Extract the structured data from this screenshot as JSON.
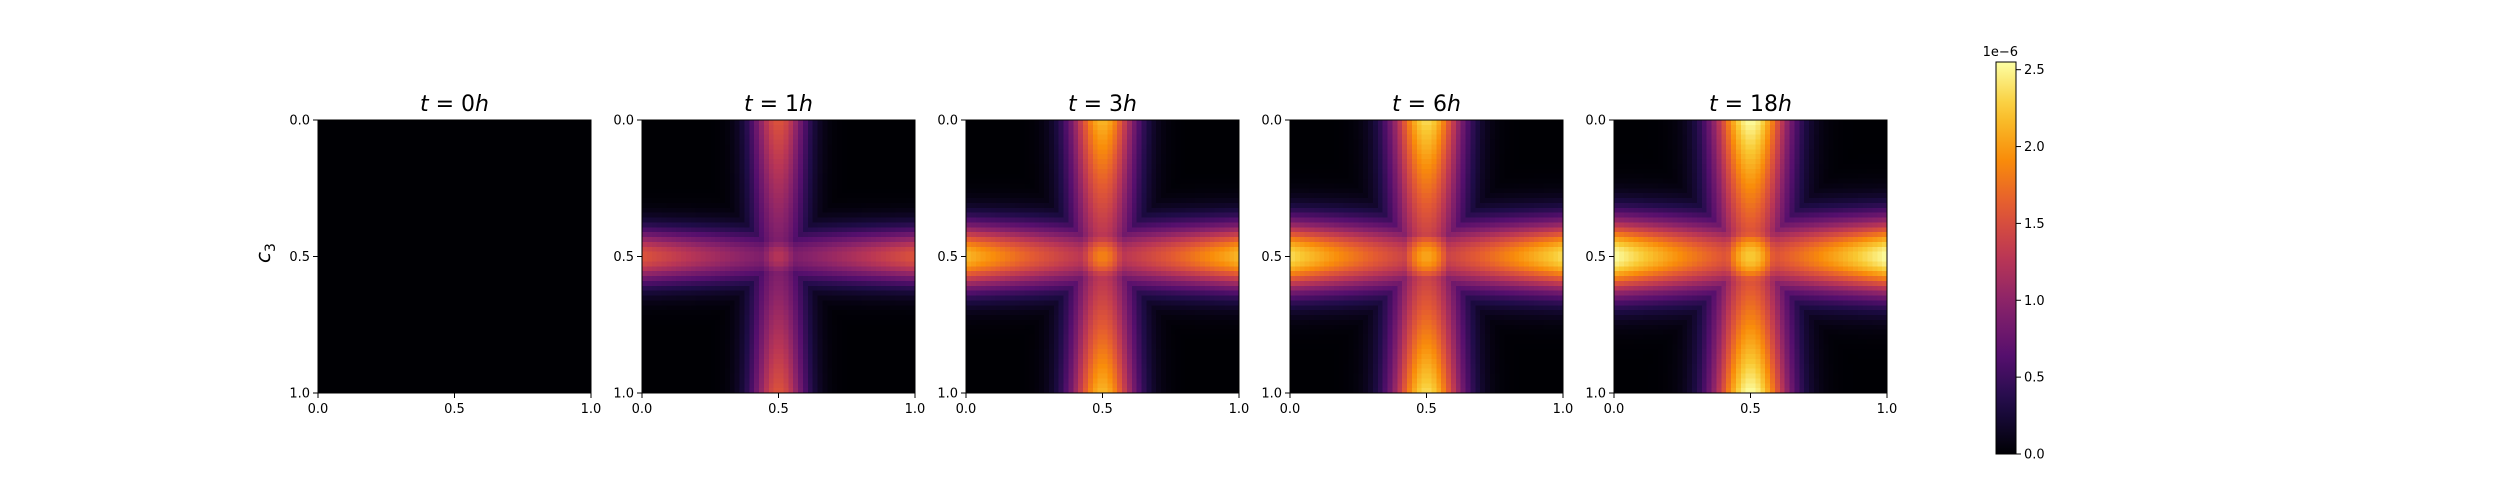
{
  "chart_data": {
    "type": "heatmap",
    "colormap": "inferno",
    "colorbar": {
      "min": 0.0,
      "max": 2.55,
      "ticks": [
        0.0,
        0.5,
        1.0,
        1.5,
        2.0,
        2.5
      ],
      "tick_labels": [
        "0.0",
        "0.5",
        "1.0",
        "1.5",
        "2.0",
        "2.5"
      ],
      "scale_label": "1e−6"
    },
    "ylabel": "c",
    "ylabel_subscript": "3",
    "x_ticks": [
      0.0,
      0.5,
      1.0
    ],
    "x_tick_labels": [
      "0.0",
      "0.5",
      "1.0"
    ],
    "y_ticks": [
      0.0,
      0.5,
      1.0
    ],
    "y_tick_labels": [
      "0.0",
      "0.5",
      "1.0"
    ],
    "xlim": [
      0,
      1
    ],
    "ylim": [
      1,
      0
    ],
    "panels": [
      {
        "title_prefix": "t = ",
        "title_value": "0",
        "title_unit": "h",
        "peak_cross": 0.0,
        "peak_band": 0.0,
        "band_width": 0.12
      },
      {
        "title_prefix": "t = ",
        "title_value": "1",
        "title_unit": "h",
        "peak_cross": 1.25,
        "peak_band": 1.55,
        "band_width": 0.1
      },
      {
        "title_prefix": "t = ",
        "title_value": "3",
        "title_unit": "h",
        "peak_cross": 1.85,
        "peak_band": 2.15,
        "band_width": 0.12
      },
      {
        "title_prefix": "t = ",
        "title_value": "6",
        "title_unit": "h",
        "peak_cross": 2.05,
        "peak_band": 2.35,
        "band_width": 0.13
      },
      {
        "title_prefix": "t = ",
        "title_value": "18",
        "title_unit": "h",
        "peak_cross": 2.25,
        "peak_band": 2.55,
        "band_width": 0.14
      }
    ]
  }
}
